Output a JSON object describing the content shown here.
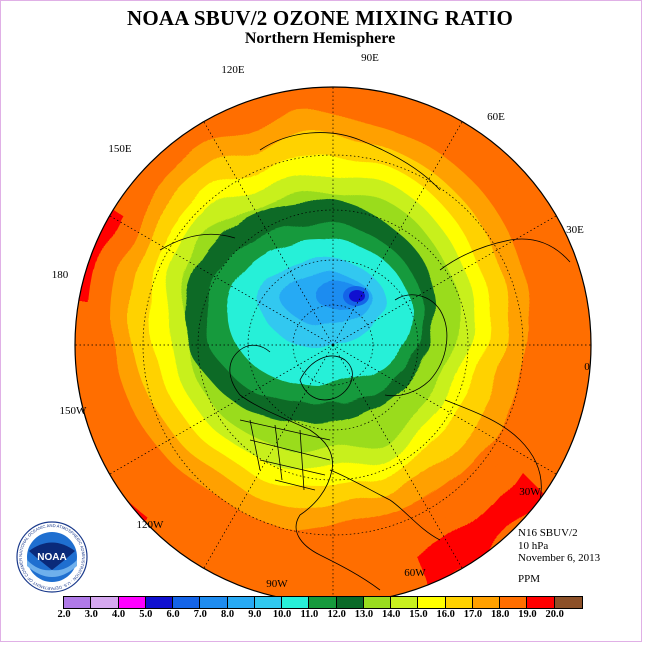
{
  "title": "NOAA SBUV/2 OZONE MIXING RATIO",
  "subtitle": "Northern Hemisphere",
  "info": {
    "satellite": "N16 SBUV/2",
    "level": "10 hPa",
    "date": "November 6, 2013",
    "units": "PPM"
  },
  "longitude_labels": [
    "90E",
    "120E",
    "60E",
    "150E",
    "30E",
    "180",
    "0",
    "150W",
    "30W",
    "120W",
    "60W",
    "90W"
  ],
  "colorbar": {
    "labels": [
      "2.0",
      "3.0",
      "4.0",
      "5.0",
      "6.0",
      "7.0",
      "8.0",
      "9.0",
      "10.0",
      "11.0",
      "12.0",
      "13.0",
      "14.0",
      "15.0",
      "16.0",
      "17.0",
      "18.0",
      "19.0",
      "20.0"
    ],
    "colors": [
      "#b07ae8",
      "#d6a8f0",
      "#ff00ff",
      "#1010d0",
      "#1464e8",
      "#1e8cf0",
      "#28aaf4",
      "#30c8f0",
      "#28f0d8",
      "#169a3c",
      "#0a6a28",
      "#9adc1e",
      "#c8f01e",
      "#ffff00",
      "#ffd200",
      "#ffa000",
      "#ff6e00",
      "#ff0000",
      "#8c5028"
    ]
  },
  "logo": {
    "text": "NOAA",
    "ring_text": "NATIONAL OCEANIC AND ATMOSPHERIC ADMINISTRATION · U.S. DEPARTMENT OF COMMERCE"
  }
}
